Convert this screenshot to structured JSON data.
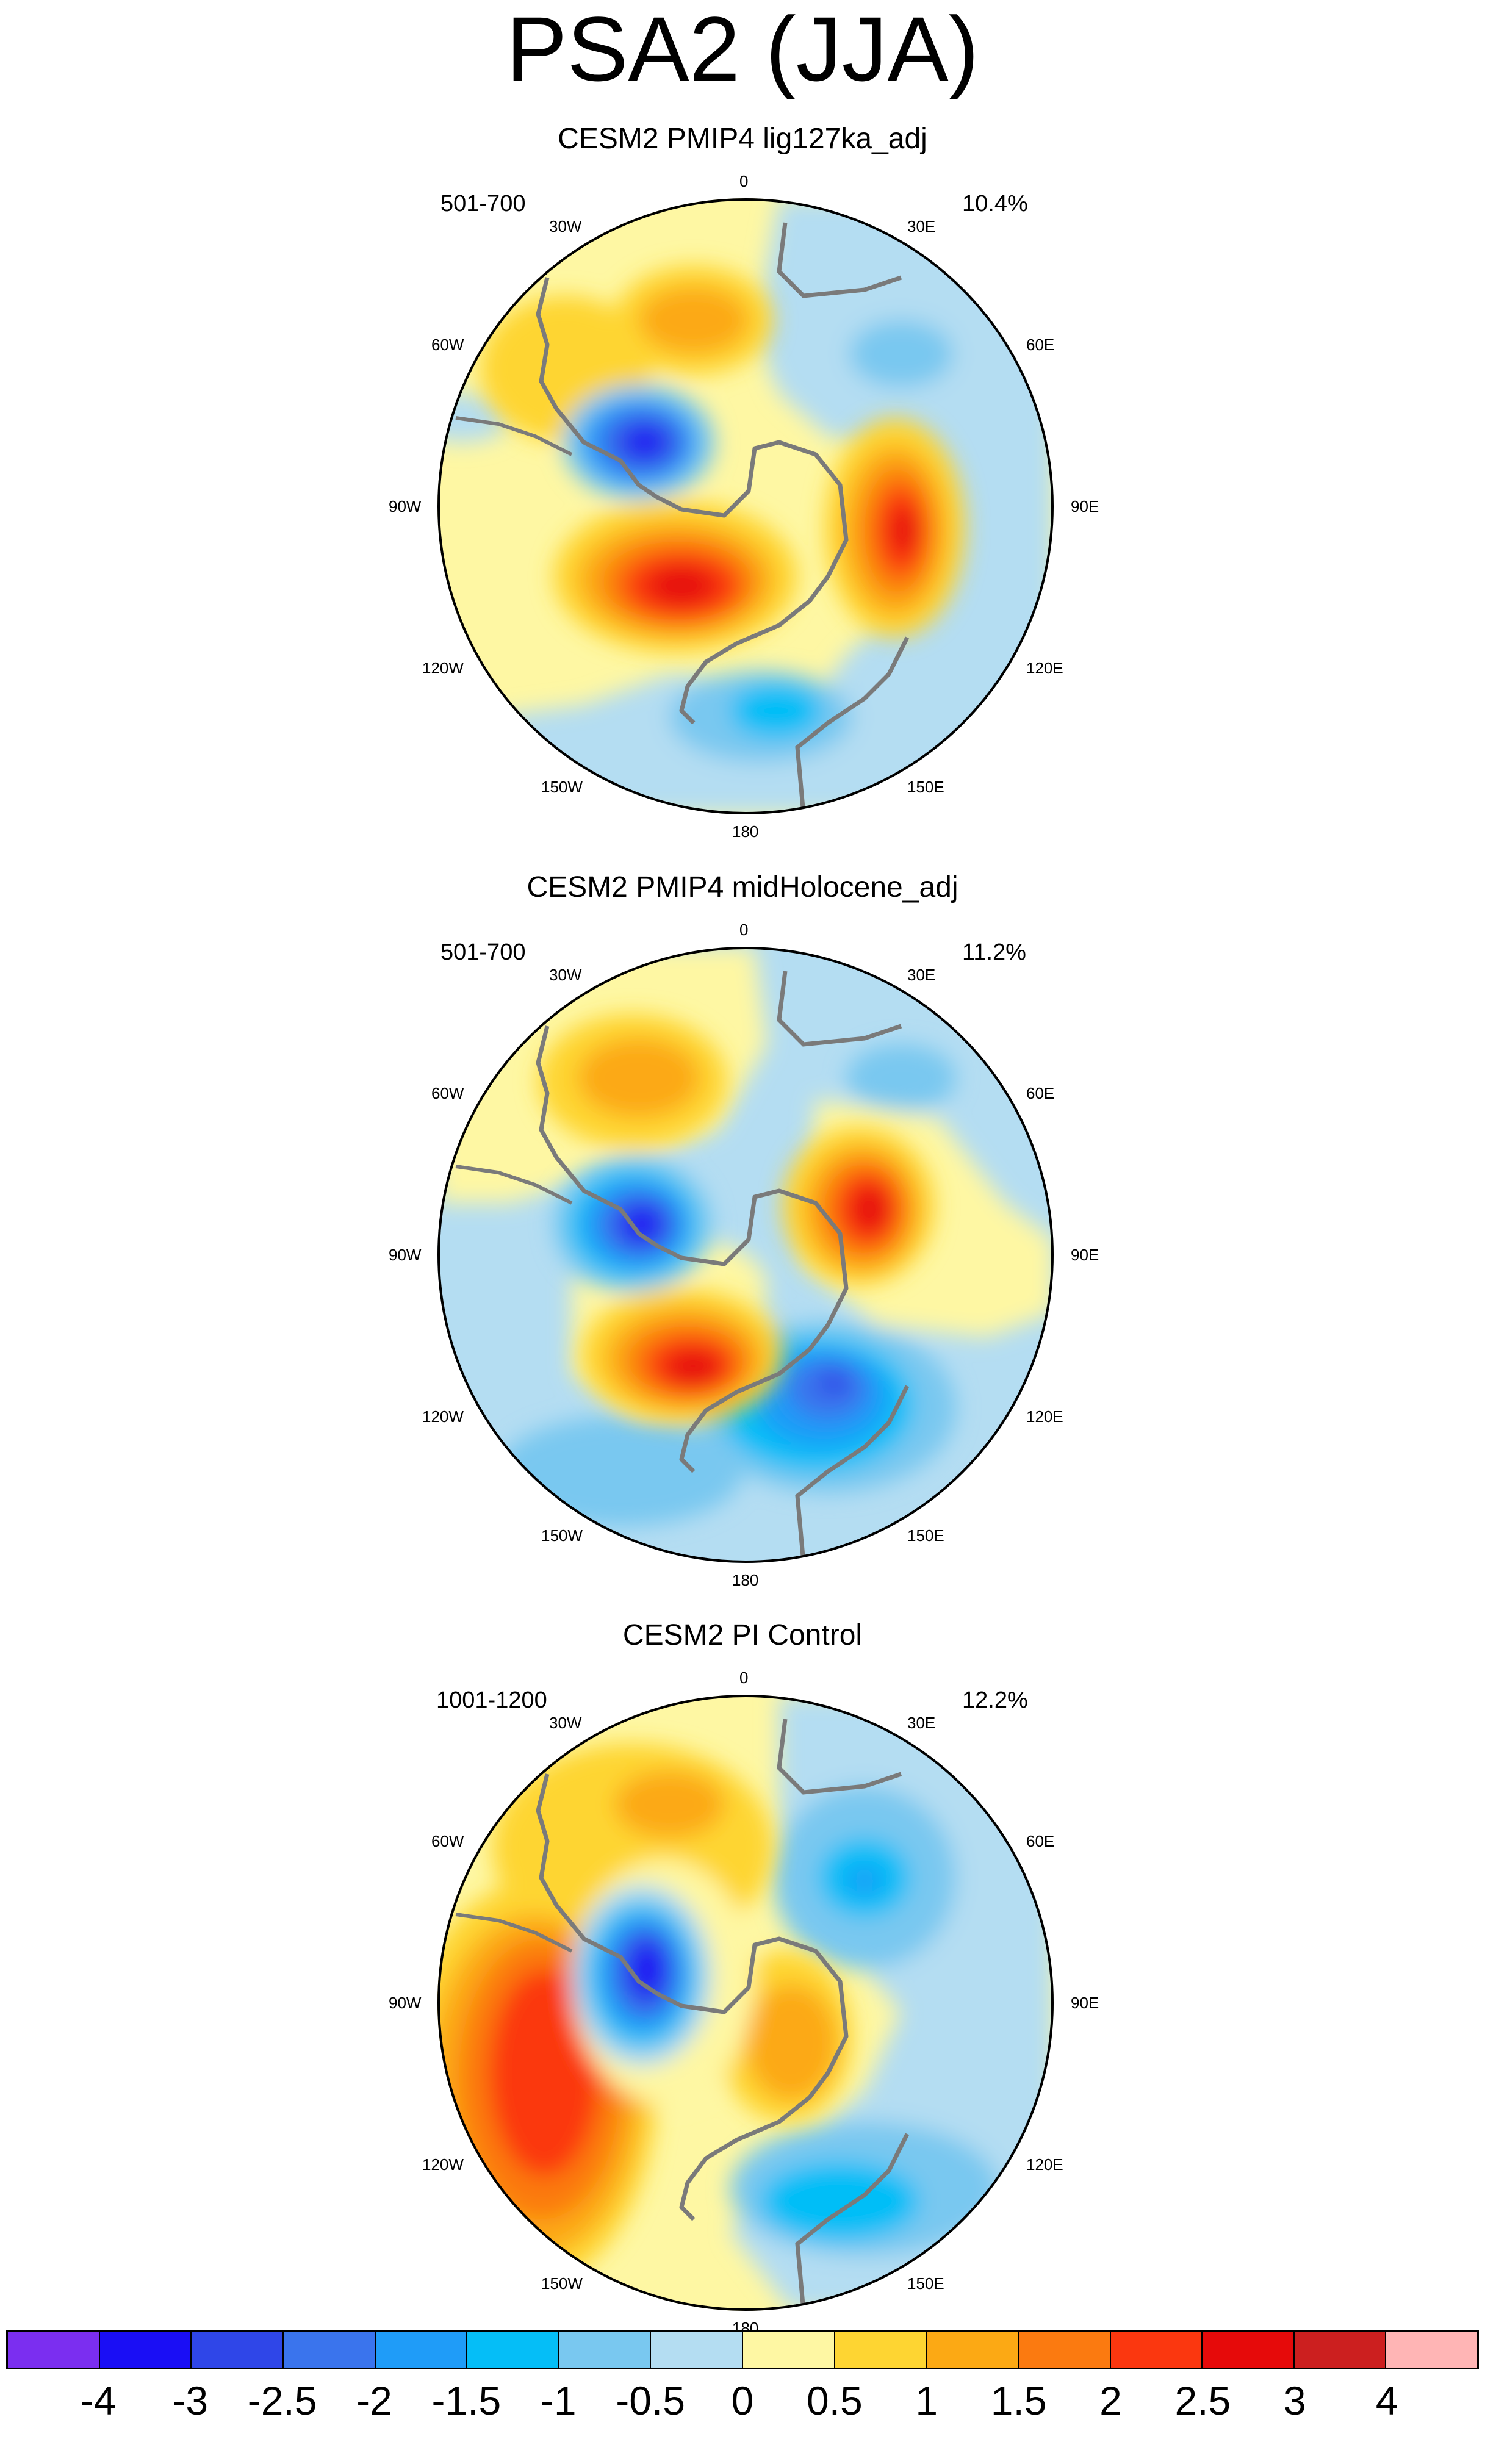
{
  "figure_title": "PSA2 (JJA)",
  "panels": [
    {
      "title": "CESM2 PMIP4 lig127ka_adj",
      "years": "501-700",
      "percent": "10.4%"
    },
    {
      "title": "CESM2 PMIP4 midHolocene_adj",
      "years": "501-700",
      "percent": "11.2%"
    },
    {
      "title": "CESM2 PI Control",
      "years": "1001-1200",
      "percent": "12.2%"
    }
  ],
  "lon_labels": [
    "0",
    "30E",
    "60E",
    "90E",
    "120E",
    "150E",
    "180",
    "150W",
    "120W",
    "90W",
    "60W",
    "30W"
  ],
  "colorbar": {
    "colors": [
      "#7b2ef0",
      "#1a0ef5",
      "#2f46e8",
      "#3a74ed",
      "#1f9cf8",
      "#05bef7",
      "#79c8f0",
      "#b4ddf2",
      "#fef7a3",
      "#fed532",
      "#fca914",
      "#fb7a10",
      "#fb370f",
      "#e60a0a",
      "#cc1f1f",
      "#ffb5b5"
    ],
    "ticks": [
      "-4",
      "-3",
      "-2.5",
      "-2",
      "-1.5",
      "-1",
      "-0.5",
      "0",
      "0.5",
      "1",
      "1.5",
      "2",
      "2.5",
      "3",
      "4"
    ]
  },
  "chart_data": {
    "type": "heatmap",
    "projection": "south-polar-stereographic",
    "variable": "PSA2 (JJA)",
    "contour_levels": [
      -4,
      -3,
      -2.5,
      -2,
      -1.5,
      -1,
      -0.5,
      0,
      0.5,
      1,
      1.5,
      2,
      2.5,
      3,
      4
    ],
    "maps": [
      {
        "title": "CESM2 PMIP4 lig127ka_adj",
        "period": "501-700",
        "variance_explained": "10.4%"
      },
      {
        "title": "CESM2 PMIP4 midHolocene_adj",
        "period": "501-700",
        "variance_explained": "11.2%"
      },
      {
        "title": "CESM2 PI Control",
        "period": "1001-1200",
        "variance_explained": "12.2%"
      }
    ]
  }
}
